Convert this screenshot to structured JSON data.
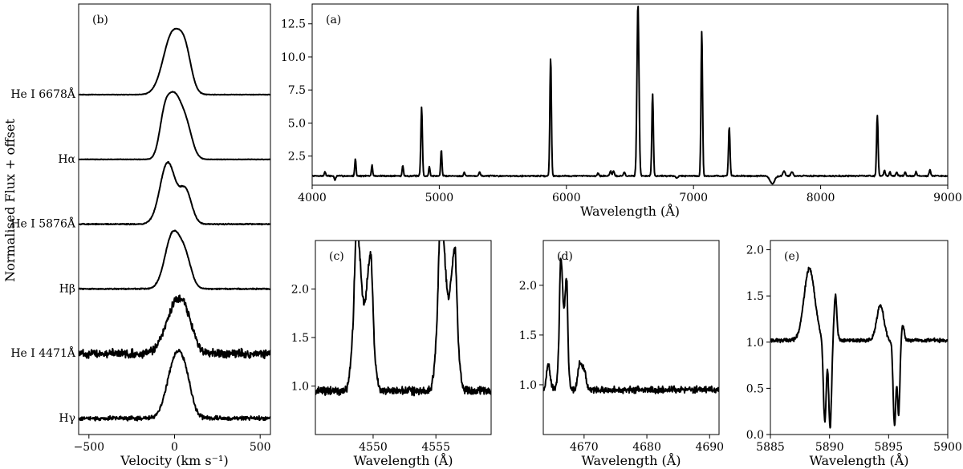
{
  "figure": {
    "ylabel_left": "Normalised Flux + offset"
  },
  "chart_data": [
    {
      "id": "a",
      "panel_label": "(a)",
      "type": "line",
      "xlabel": "Wavelength (Å)",
      "ylabel": "",
      "xlim": [
        4000,
        9000
      ],
      "ylim": [
        0.3,
        14.0
      ],
      "xticks": [
        4000,
        5000,
        6000,
        7000,
        8000,
        9000
      ],
      "yticks": [
        2.5,
        5.0,
        7.5,
        10.0,
        12.5
      ],
      "continuum": 1.0,
      "noise": 0.06,
      "lines": [
        {
          "x": 4101,
          "peak": 1.35,
          "w": 5
        },
        {
          "x": 4340,
          "peak": 2.3,
          "w": 5
        },
        {
          "x": 4471,
          "peak": 1.8,
          "w": 5
        },
        {
          "x": 4713,
          "peak": 1.8,
          "w": 5
        },
        {
          "x": 4861,
          "peak": 6.2,
          "w": 6
        },
        {
          "x": 4922,
          "peak": 1.7,
          "w": 5
        },
        {
          "x": 5016,
          "peak": 3.0,
          "w": 5
        },
        {
          "x": 5876,
          "peak": 10.0,
          "w": 6
        },
        {
          "x": 6563,
          "peak": 14.0,
          "w": 8
        },
        {
          "x": 6678,
          "peak": 7.2,
          "w": 6
        },
        {
          "x": 7065,
          "peak": 12.0,
          "w": 6
        },
        {
          "x": 7281,
          "peak": 4.7,
          "w": 6
        },
        {
          "x": 8446,
          "peak": 5.6,
          "w": 6
        },
        {
          "x": 8860,
          "peak": 1.5,
          "w": 6
        },
        {
          "x": 8750,
          "peak": 1.3,
          "w": 6
        },
        {
          "x": 8665,
          "peak": 1.3,
          "w": 6
        },
        {
          "x": 8598,
          "peak": 1.3,
          "w": 6
        },
        {
          "x": 8545,
          "peak": 1.3,
          "w": 6
        },
        {
          "x": 8502,
          "peak": 1.4,
          "w": 6
        },
        {
          "x": 7774,
          "peak": 1.3,
          "w": 8
        },
        {
          "x": 7712,
          "peak": 1.4,
          "w": 8
        },
        {
          "x": 6347,
          "peak": 1.4,
          "w": 6
        },
        {
          "x": 6371,
          "peak": 1.35,
          "w": 6
        },
        {
          "x": 6456,
          "peak": 1.3,
          "w": 6
        },
        {
          "x": 6249,
          "peak": 1.2,
          "w": 6
        },
        {
          "x": 5317,
          "peak": 1.3,
          "w": 6
        },
        {
          "x": 5197,
          "peak": 1.25,
          "w": 6
        }
      ],
      "absorptions": [
        {
          "x": 7620,
          "depth": 0.6,
          "w": 18
        },
        {
          "x": 6870,
          "depth": 0.15,
          "w": 8
        },
        {
          "x": 4180,
          "depth": 0.3,
          "w": 6
        }
      ]
    },
    {
      "id": "b",
      "panel_label": "(b)",
      "type": "line",
      "xlabel": "Velocity (km s⁻¹)",
      "ylabel": "Normalised Flux + offset",
      "xlim": [
        -560,
        560
      ],
      "xticks": [
        -500,
        0,
        500
      ],
      "series": [
        {
          "name": "He I 6678Å",
          "offset": 5,
          "noise": 0.005,
          "components": [
            {
              "v": -10,
              "a": 0.95,
              "s": 55
            },
            {
              "v": 65,
              "a": 0.45,
              "s": 35
            }
          ]
        },
        {
          "name": "Hα",
          "offset": 4,
          "noise": 0.005,
          "components": [
            {
              "v": -60,
              "a": 0.55,
              "s": 30
            },
            {
              "v": 0,
              "a": 0.9,
              "s": 40
            },
            {
              "v": 70,
              "a": 0.45,
              "s": 35
            }
          ]
        },
        {
          "name": "He I 5876Å",
          "offset": 3,
          "noise": 0.01,
          "components": [
            {
              "v": -40,
              "a": 0.95,
              "s": 45
            },
            {
              "v": 65,
              "a": 0.5,
              "s": 35
            }
          ]
        },
        {
          "name": "Hβ",
          "offset": 2,
          "noise": 0.01,
          "components": [
            {
              "v": -10,
              "a": 0.85,
              "s": 45
            },
            {
              "v": 65,
              "a": 0.4,
              "s": 35
            }
          ]
        },
        {
          "name": "He I 4471Å",
          "offset": 1,
          "noise": 0.08,
          "components": [
            {
              "v": 10,
              "a": 0.75,
              "s": 60
            },
            {
              "v": 70,
              "a": 0.25,
              "s": 40
            }
          ]
        },
        {
          "name": "Hγ",
          "offset": 0,
          "noise": 0.04,
          "components": [
            {
              "v": 10,
              "a": 0.95,
              "s": 50
            },
            {
              "v": 70,
              "a": 0.3,
              "s": 35
            }
          ]
        }
      ],
      "ylim": [
        -0.25,
        6.4
      ]
    },
    {
      "id": "c",
      "panel_label": "(c)",
      "type": "line",
      "xlabel": "Wavelength (Å)",
      "xlim": [
        4545.4,
        4559.4
      ],
      "ylim": [
        0.5,
        2.5
      ],
      "xticks": [
        4550,
        4555
      ],
      "yticks": [
        1.0,
        1.5,
        2.0
      ],
      "continuum": 0.95,
      "noise": 0.05,
      "lines": [
        {
          "x": 4548.7,
          "peak": 2.05,
          "w": 0.3
        },
        {
          "x": 4549.8,
          "peak": 1.75,
          "w": 0.28
        },
        {
          "x": 4555.4,
          "peak": 2.18,
          "w": 0.3
        },
        {
          "x": 4556.5,
          "peak": 1.75,
          "w": 0.28
        }
      ],
      "plateaus": [
        {
          "from": 4548.4,
          "to": 4550.1,
          "level": 1.55
        },
        {
          "from": 4555.1,
          "to": 4556.8,
          "level": 1.6
        }
      ]
    },
    {
      "id": "d",
      "panel_label": "(d)",
      "type": "line",
      "xlabel": "Wavelength (Å)",
      "xlim": [
        4663.5,
        4691.5
      ],
      "ylim": [
        0.5,
        2.45
      ],
      "xticks": [
        4670,
        4680,
        4690
      ],
      "yticks": [
        1.0,
        1.5,
        2.0
      ],
      "continuum": 0.95,
      "noise": 0.04,
      "lines": [
        {
          "x": 4666.3,
          "peak": 1.88,
          "w": 0.3
        },
        {
          "x": 4667.2,
          "peak": 1.65,
          "w": 0.25
        },
        {
          "x": 4664.3,
          "peak": 1.2,
          "w": 0.3
        },
        {
          "x": 4669.3,
          "peak": 1.2,
          "w": 0.3
        },
        {
          "x": 4670.0,
          "peak": 1.15,
          "w": 0.3
        }
      ],
      "plateaus": [
        {
          "from": 4666.0,
          "to": 4667.5,
          "level": 1.35
        }
      ]
    },
    {
      "id": "e",
      "panel_label": "(e)",
      "type": "line",
      "xlabel": "Wavelength (Å)",
      "xlim": [
        5885,
        5900
      ],
      "ylim": [
        0.0,
        2.1
      ],
      "xticks": [
        5885,
        5890,
        5895,
        5900
      ],
      "yticks": [
        0.0,
        0.5,
        1.0,
        1.5,
        2.0
      ],
      "continuum": 1.02,
      "noise": 0.025,
      "lines": [
        {
          "x": 5888.3,
          "peak": 1.8,
          "w": 0.45
        },
        {
          "x": 5890.5,
          "peak": 1.5,
          "w": 0.12
        },
        {
          "x": 5894.3,
          "peak": 1.4,
          "w": 0.3
        },
        {
          "x": 5896.2,
          "peak": 1.18,
          "w": 0.12
        }
      ],
      "absorptions": [
        {
          "x": 5889.6,
          "depth": 0.9,
          "w": 0.12
        },
        {
          "x": 5890.05,
          "depth": 0.95,
          "w": 0.12
        },
        {
          "x": 5895.5,
          "depth": 0.92,
          "w": 0.12
        },
        {
          "x": 5895.85,
          "depth": 0.8,
          "w": 0.1
        }
      ]
    }
  ]
}
